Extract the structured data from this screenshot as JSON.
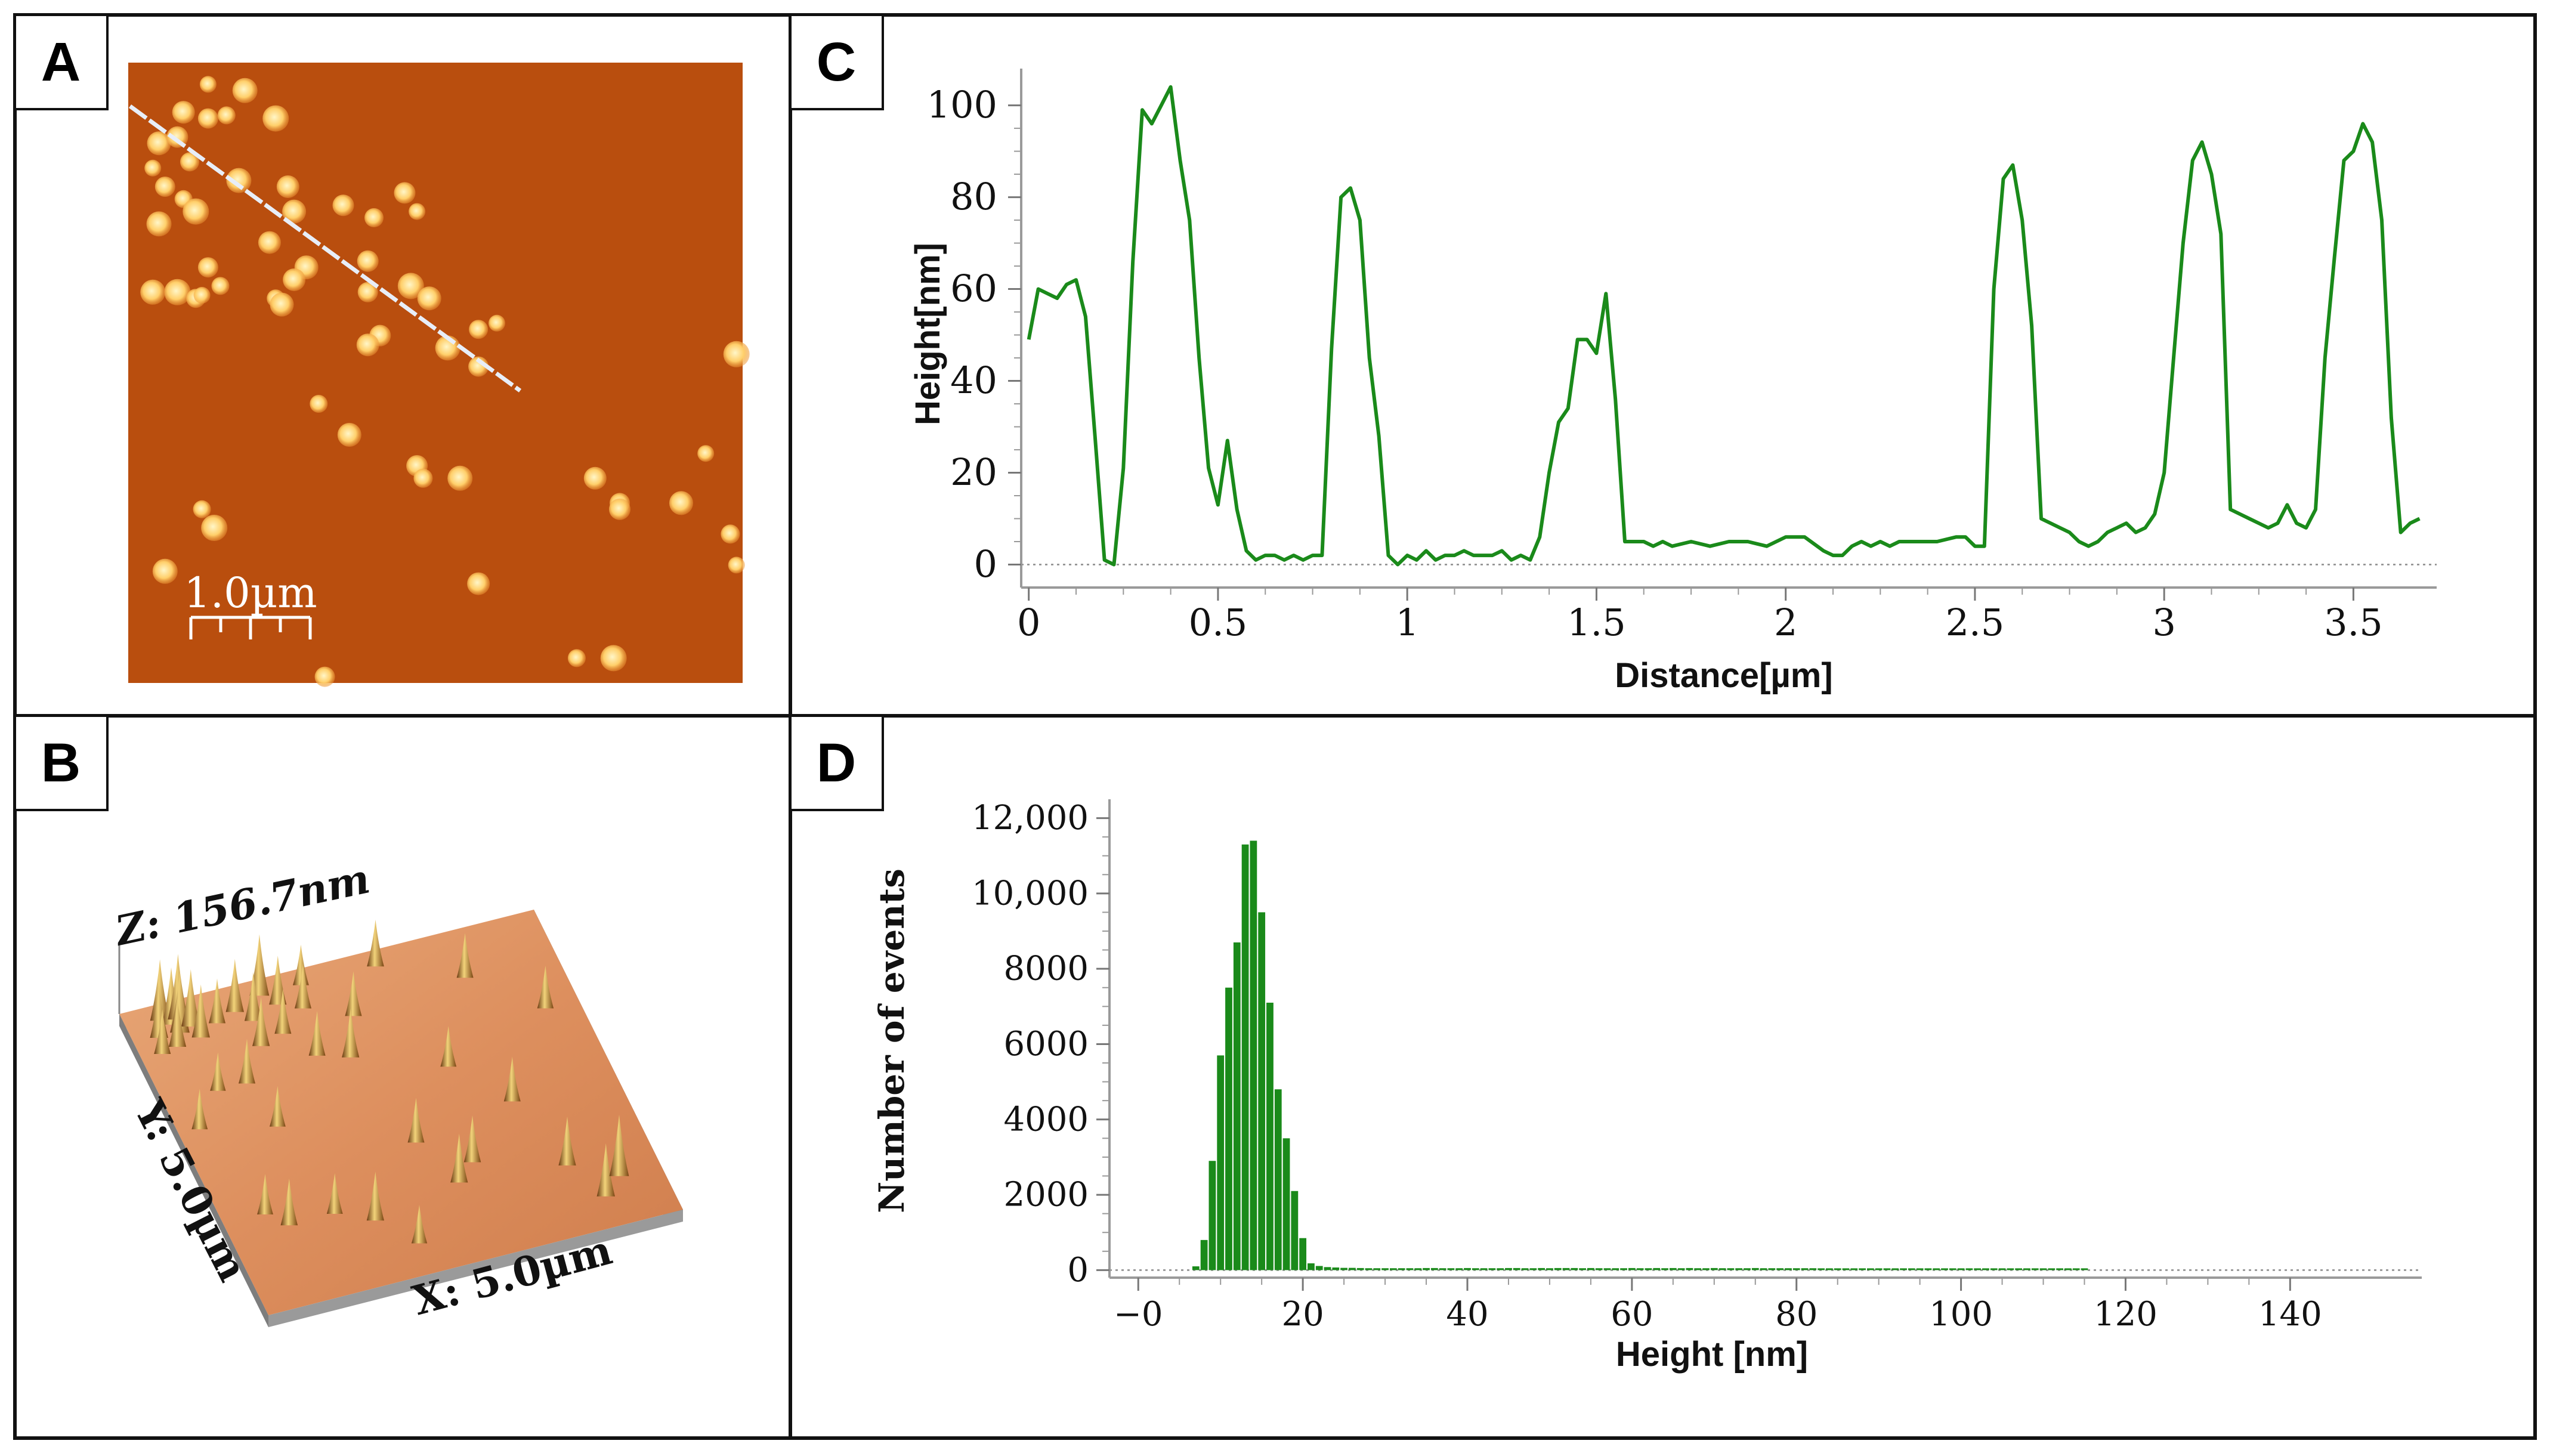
{
  "panels": {
    "a": {
      "letter": "A",
      "scale_label": "1.0µm",
      "particles": [
        [
          0.13,
          0.035
        ],
        [
          0.19,
          0.045
        ],
        [
          0.09,
          0.08
        ],
        [
          0.13,
          0.09
        ],
        [
          0.16,
          0.085
        ],
        [
          0.24,
          0.09
        ],
        [
          0.05,
          0.13
        ],
        [
          0.08,
          0.12
        ],
        [
          0.1,
          0.16
        ],
        [
          0.04,
          0.17
        ],
        [
          0.18,
          0.19
        ],
        [
          0.26,
          0.2
        ],
        [
          0.06,
          0.2
        ],
        [
          0.09,
          0.22
        ],
        [
          0.11,
          0.24
        ],
        [
          0.27,
          0.24
        ],
        [
          0.35,
          0.23
        ],
        [
          0.4,
          0.25
        ],
        [
          0.47,
          0.24
        ],
        [
          0.05,
          0.26
        ],
        [
          0.23,
          0.29
        ],
        [
          0.13,
          0.33
        ],
        [
          0.15,
          0.36
        ],
        [
          0.08,
          0.37
        ],
        [
          0.29,
          0.33
        ],
        [
          0.39,
          0.32
        ],
        [
          0.11,
          0.38
        ],
        [
          0.12,
          0.375
        ],
        [
          0.04,
          0.37
        ],
        [
          0.27,
          0.35
        ],
        [
          0.39,
          0.37
        ],
        [
          0.24,
          0.38
        ],
        [
          0.46,
          0.36
        ],
        [
          0.49,
          0.38
        ],
        [
          0.41,
          0.44
        ],
        [
          0.57,
          0.43
        ],
        [
          0.6,
          0.42
        ],
        [
          0.52,
          0.46
        ],
        [
          0.39,
          0.455
        ],
        [
          0.57,
          0.49
        ],
        [
          0.31,
          0.55
        ],
        [
          0.99,
          0.47
        ],
        [
          0.36,
          0.6
        ],
        [
          0.47,
          0.65
        ],
        [
          0.48,
          0.67
        ],
        [
          0.94,
          0.63
        ],
        [
          0.54,
          0.67
        ],
        [
          0.76,
          0.67
        ],
        [
          0.8,
          0.71
        ],
        [
          0.12,
          0.72
        ],
        [
          0.14,
          0.75
        ],
        [
          0.9,
          0.71
        ],
        [
          0.8,
          0.72
        ],
        [
          0.98,
          0.76
        ],
        [
          0.99,
          0.81
        ],
        [
          0.06,
          0.82
        ],
        [
          0.57,
          0.84
        ],
        [
          0.32,
          0.99
        ],
        [
          0.73,
          0.96
        ],
        [
          0.79,
          0.96
        ],
        [
          0.25,
          0.39
        ],
        [
          0.45,
          0.21
        ]
      ]
    },
    "b": {
      "letter": "B",
      "z_label": "Z: 156.7nm",
      "y_label": "Y: 5.0µm",
      "x_label": "X: 5.0µm",
      "peaks": [
        [
          0.08,
          0.05,
          0.9
        ],
        [
          0.1,
          0.07,
          0.8
        ],
        [
          0.12,
          0.06,
          1.0
        ],
        [
          0.06,
          0.1,
          0.7
        ],
        [
          0.11,
          0.1,
          0.9
        ],
        [
          0.14,
          0.09,
          0.8
        ],
        [
          0.09,
          0.14,
          0.6
        ],
        [
          0.15,
          0.13,
          0.7
        ],
        [
          0.05,
          0.15,
          0.5
        ],
        [
          0.2,
          0.1,
          0.5
        ],
        [
          0.25,
          0.08,
          0.7
        ],
        [
          0.28,
          0.12,
          0.6
        ],
        [
          0.32,
          0.05,
          0.9
        ],
        [
          0.35,
          0.09,
          0.6
        ],
        [
          0.4,
          0.12,
          0.5
        ],
        [
          0.42,
          0.05,
          0.4
        ],
        [
          0.27,
          0.2,
          0.6
        ],
        [
          0.33,
          0.18,
          0.5
        ],
        [
          0.2,
          0.3,
          0.5
        ],
        [
          0.38,
          0.27,
          0.5
        ],
        [
          0.45,
          0.3,
          0.6
        ],
        [
          0.5,
          0.18,
          0.5
        ],
        [
          0.22,
          0.45,
          0.4
        ],
        [
          0.1,
          0.7,
          0.4
        ],
        [
          0.14,
          0.75,
          0.55
        ],
        [
          0.25,
          0.75,
          0.4
        ],
        [
          0.33,
          0.8,
          0.6
        ],
        [
          0.5,
          0.6,
          0.5
        ],
        [
          0.55,
          0.75,
          0.6
        ],
        [
          0.6,
          0.7,
          0.55
        ],
        [
          0.65,
          0.4,
          0.4
        ],
        [
          0.75,
          0.55,
          0.5
        ],
        [
          0.8,
          0.78,
          0.6
        ],
        [
          0.85,
          0.9,
          0.7
        ],
        [
          0.9,
          0.85,
          0.9
        ],
        [
          0.6,
          0.05,
          0.55
        ],
        [
          0.78,
          0.15,
          0.5
        ],
        [
          0.92,
          0.3,
          0.45
        ],
        [
          0.4,
          0.9,
          0.35
        ],
        [
          0.13,
          0.3,
          0.35
        ],
        [
          0.05,
          0.4,
          0.4
        ]
      ]
    },
    "c": {
      "letter": "C"
    },
    "d": {
      "letter": "D"
    }
  },
  "chart_data": [
    {
      "type": "line",
      "panel": "C",
      "xlabel": "Distance[µm]",
      "ylabel": "Height[nm]",
      "xlim": [
        -0.02,
        3.72
      ],
      "ylim": [
        -5,
        108
      ],
      "xticks": [
        0,
        0.5,
        1,
        1.5,
        2,
        2.5,
        3,
        3.5
      ],
      "xtick_labels": [
        "0",
        "0.5",
        "1",
        "1.5",
        "2",
        "2.5",
        "3",
        "3.5"
      ],
      "yticks": [
        0,
        20,
        40,
        60,
        80,
        100
      ],
      "ytick_labels": [
        "0",
        "20",
        "40",
        "60",
        "80",
        "100"
      ],
      "color": "#1a8a1a",
      "x": [
        0,
        0.025,
        0.05,
        0.075,
        0.1,
        0.125,
        0.15,
        0.175,
        0.2,
        0.225,
        0.25,
        0.275,
        0.3,
        0.325,
        0.35,
        0.375,
        0.4,
        0.425,
        0.45,
        0.475,
        0.5,
        0.525,
        0.55,
        0.575,
        0.6,
        0.625,
        0.65,
        0.675,
        0.7,
        0.725,
        0.75,
        0.775,
        0.8,
        0.825,
        0.85,
        0.875,
        0.9,
        0.925,
        0.95,
        0.975,
        1.0,
        1.025,
        1.05,
        1.075,
        1.1,
        1.125,
        1.15,
        1.175,
        1.2,
        1.225,
        1.25,
        1.275,
        1.3,
        1.325,
        1.35,
        1.375,
        1.4,
        1.425,
        1.45,
        1.475,
        1.5,
        1.525,
        1.55,
        1.575,
        1.6,
        1.625,
        1.65,
        1.675,
        1.7,
        1.75,
        1.8,
        1.85,
        1.9,
        1.95,
        2.0,
        2.05,
        2.1,
        2.125,
        2.15,
        2.175,
        2.2,
        2.225,
        2.25,
        2.275,
        2.3,
        2.35,
        2.4,
        2.45,
        2.475,
        2.5,
        2.525,
        2.55,
        2.575,
        2.6,
        2.625,
        2.65,
        2.675,
        2.7,
        2.725,
        2.75,
        2.775,
        2.8,
        2.825,
        2.85,
        2.875,
        2.9,
        2.925,
        2.95,
        2.975,
        3.0,
        3.025,
        3.05,
        3.075,
        3.1,
        3.125,
        3.15,
        3.175,
        3.2,
        3.225,
        3.25,
        3.275,
        3.3,
        3.325,
        3.35,
        3.375,
        3.4,
        3.425,
        3.45,
        3.475,
        3.5,
        3.525,
        3.55,
        3.575,
        3.6,
        3.625,
        3.65,
        3.675
      ],
      "y": [
        49,
        60,
        59,
        58,
        61,
        62,
        54,
        28,
        1,
        0,
        21,
        66,
        99,
        96,
        100,
        104,
        88,
        75,
        45,
        21,
        13,
        27,
        12,
        3,
        1,
        2,
        2,
        1,
        2,
        1,
        2,
        2,
        47,
        80,
        82,
        75,
        45,
        28,
        2,
        0,
        2,
        1,
        3,
        1,
        2,
        2,
        3,
        2,
        2,
        2,
        3,
        1,
        2,
        1,
        6,
        20,
        31,
        34,
        49,
        49,
        46,
        59,
        36,
        5,
        5,
        5,
        4,
        5,
        4,
        5,
        4,
        5,
        5,
        4,
        6,
        6,
        3,
        2,
        2,
        4,
        5,
        4,
        5,
        4,
        5,
        5,
        5,
        6,
        6,
        4,
        4,
        60,
        84,
        87,
        75,
        52,
        10,
        9,
        8,
        7,
        5,
        4,
        5,
        7,
        8,
        9,
        7,
        8,
        11,
        20,
        45,
        70,
        88,
        92,
        85,
        72,
        12,
        11,
        10,
        9,
        8,
        9,
        13,
        9,
        8,
        12,
        45,
        67,
        88,
        90,
        96,
        92,
        75,
        32,
        7,
        9,
        10
      ]
    },
    {
      "type": "bar",
      "panel": "D",
      "xlabel": "Height [nm]",
      "ylabel": "Number of events",
      "xlim": [
        -3.5,
        156
      ],
      "ylim": [
        -200,
        12500
      ],
      "xticks": [
        0,
        20,
        40,
        60,
        80,
        100,
        120,
        140
      ],
      "xtick_labels": [
        "−0",
        "20",
        "40",
        "60",
        "80",
        "100",
        "120",
        "140"
      ],
      "yticks": [
        0,
        2000,
        4000,
        6000,
        8000,
        10000,
        12000
      ],
      "ytick_labels": [
        "0",
        "2000",
        "4000",
        "6000",
        "8000",
        "10,000",
        "12,000"
      ],
      "color": "#1a8a1a",
      "bin_width": 1,
      "x": [
        7,
        8,
        9,
        10,
        11,
        12,
        13,
        14,
        15,
        16,
        17,
        18,
        19,
        20,
        21,
        22,
        23,
        24,
        25,
        26,
        27,
        28,
        29,
        30,
        31,
        32,
        33,
        34,
        35,
        36,
        37,
        38,
        39,
        40,
        41,
        42,
        43,
        44,
        45,
        46,
        47,
        48,
        49,
        50,
        51,
        52,
        53,
        54,
        55,
        56,
        57,
        58,
        59,
        60,
        61,
        62,
        63,
        64,
        65,
        66,
        67,
        68,
        69,
        70,
        71,
        72,
        73,
        74,
        75,
        76,
        77,
        78,
        79,
        80,
        81,
        82,
        83,
        84,
        85,
        86,
        87,
        88,
        89,
        90,
        91,
        92,
        93,
        94,
        95,
        96,
        97,
        98,
        99,
        100,
        101,
        102,
        103,
        104,
        105,
        106,
        107,
        108,
        109,
        110,
        111,
        112,
        113,
        114,
        115
      ],
      "values": [
        100,
        800,
        2900,
        5700,
        7500,
        8700,
        11300,
        11400,
        9500,
        7100,
        4800,
        3500,
        2100,
        850,
        180,
        110,
        80,
        70,
        60,
        60,
        55,
        50,
        50,
        50,
        50,
        50,
        50,
        50,
        55,
        55,
        50,
        50,
        50,
        55,
        50,
        50,
        50,
        50,
        55,
        55,
        50,
        50,
        55,
        50,
        55,
        55,
        55,
        50,
        55,
        50,
        50,
        50,
        50,
        55,
        50,
        50,
        55,
        50,
        55,
        50,
        55,
        50,
        50,
        55,
        50,
        50,
        50,
        50,
        55,
        50,
        50,
        50,
        50,
        50,
        50,
        50,
        45,
        45,
        45,
        40,
        40,
        40,
        35,
        35,
        30,
        30,
        30,
        25,
        25,
        25,
        20,
        20,
        20,
        15,
        15,
        15,
        10,
        10,
        10,
        8,
        8,
        6,
        5,
        4,
        3,
        2,
        2,
        1,
        1
      ]
    }
  ]
}
